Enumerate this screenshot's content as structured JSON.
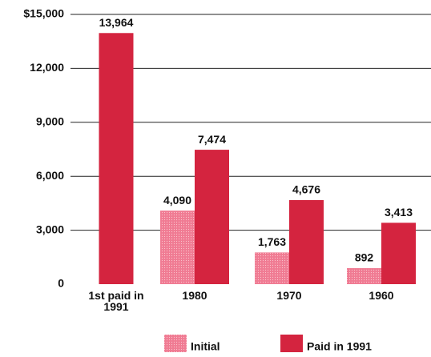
{
  "chart_data": {
    "type": "bar",
    "categories": [
      "1st paid in 1991",
      "1980",
      "1970",
      "1960"
    ],
    "series": [
      {
        "name": "Initial",
        "color": "#f07b93",
        "values": [
          null,
          4090,
          1763,
          892
        ],
        "value_labels": [
          null,
          "4,090",
          "1,763",
          "892"
        ]
      },
      {
        "name": "Paid in 1991",
        "color": "#d4243f",
        "values": [
          13964,
          7474,
          4676,
          3413
        ],
        "value_labels": [
          "13,964",
          "7,474",
          "4,676",
          "3,413"
        ]
      }
    ],
    "ylim": [
      0,
      15000
    ],
    "yticks": [
      0,
      {
        "value": 3000,
        "label": "3,000"
      },
      {
        "value": 6000,
        "label": "6,000"
      },
      {
        "value": 9000,
        "label": "9,000"
      },
      {
        "value": 12000,
        "label": "12,000"
      },
      {
        "value": 15000,
        "label": "$15,000"
      }
    ],
    "grid": true,
    "legend": "bottom"
  }
}
